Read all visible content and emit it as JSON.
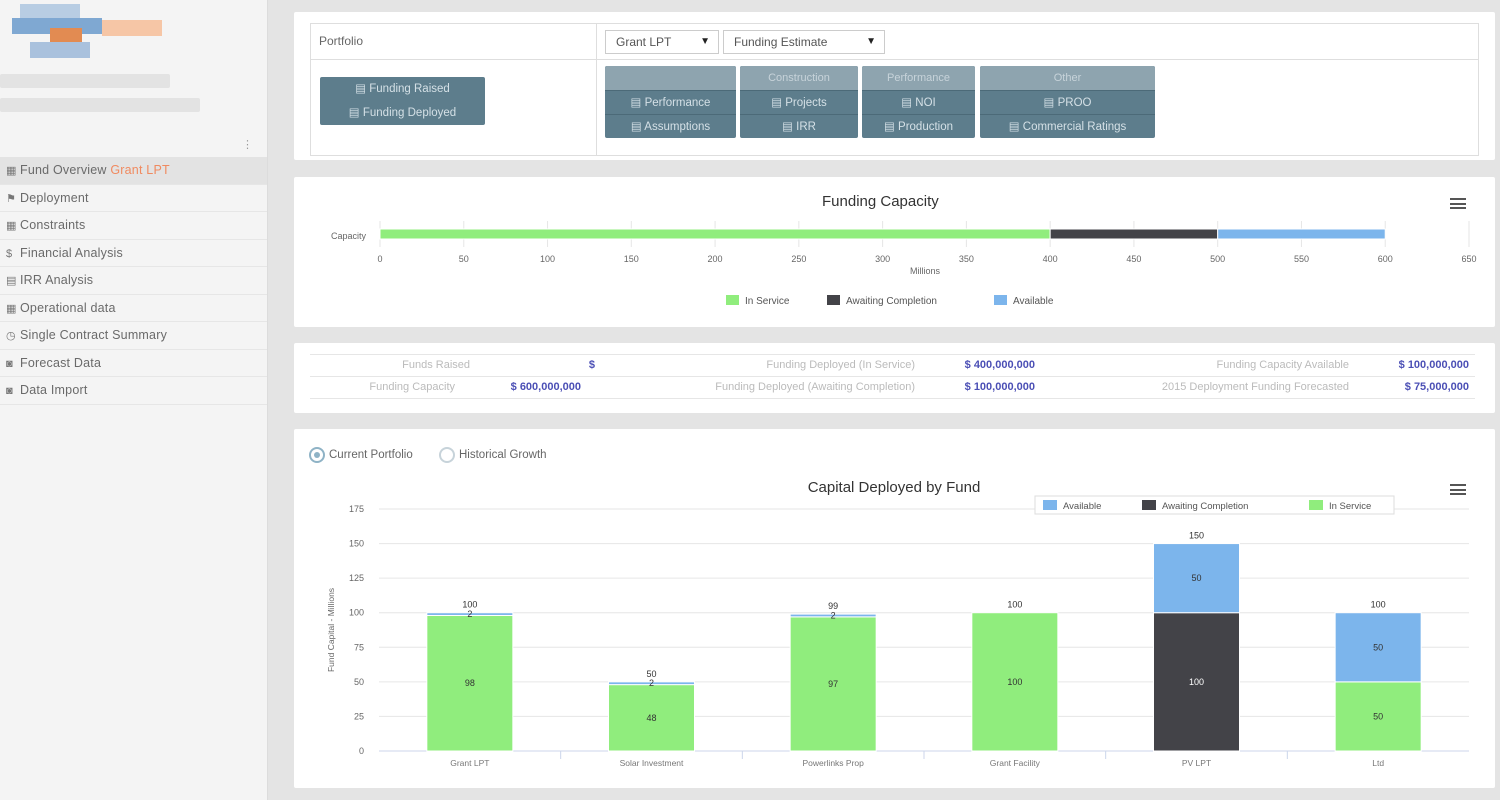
{
  "sidebar": {
    "nav": [
      {
        "icon": "dashboard-icon",
        "glyph": "▦",
        "label": "Fund Overview",
        "sub": "Grant LPT"
      },
      {
        "icon": "flag-icon",
        "glyph": "⚑",
        "label": "Deployment",
        "sub": ""
      },
      {
        "icon": "grid-icon",
        "glyph": "▦",
        "label": "Constraints",
        "sub": ""
      },
      {
        "icon": "dollar-icon",
        "glyph": "$",
        "label": "Financial Analysis",
        "sub": ""
      },
      {
        "icon": "chart-icon",
        "glyph": "▤",
        "label": "IRR Analysis",
        "sub": ""
      },
      {
        "icon": "table-icon",
        "glyph": "▦",
        "label": "Operational data",
        "sub": ""
      },
      {
        "icon": "clock-icon",
        "glyph": "◷",
        "label": "Single Contract Summary",
        "sub": ""
      },
      {
        "icon": "camera-icon",
        "glyph": "◙",
        "label": "Forecast Data",
        "sub": ""
      },
      {
        "icon": "camera-icon",
        "glyph": "◙",
        "label": "Data Import",
        "sub": ""
      }
    ]
  },
  "toolbar": {
    "portfolio_label": "Portfolio",
    "fund_select": "Grant LPT",
    "mode_select": "Funding Estimate",
    "left_buttons": [
      "Funding Raised",
      "Funding Deployed"
    ],
    "groups": [
      {
        "header": "",
        "buttons": [
          "Performance",
          "Assumptions"
        ]
      },
      {
        "header": "Construction",
        "buttons": [
          "Projects",
          "IRR"
        ]
      },
      {
        "header": "Performance",
        "buttons": [
          "NOI",
          "Production"
        ]
      },
      {
        "header": "Other",
        "buttons": [
          "PROO",
          "Commercial Ratings"
        ]
      }
    ]
  },
  "capacity_chart": {
    "title": "Funding Capacity",
    "category": "Capacity",
    "xlabel": "Millions",
    "ticks": [
      "0",
      "50",
      "100",
      "150",
      "200",
      "250",
      "300",
      "350",
      "400",
      "450",
      "500",
      "550",
      "600",
      "650"
    ],
    "legend": [
      "In Service",
      "Awaiting Completion",
      "Available"
    ]
  },
  "stats": {
    "row1": [
      {
        "label": "Funds Raised",
        "value": "$"
      },
      {
        "label": "Funding Deployed (In Service)",
        "value": "$ 400,000,000"
      },
      {
        "label": "Funding Capacity Available",
        "value": "$ 100,000,000"
      }
    ],
    "row2": [
      {
        "label": "Funding Capacity",
        "value": "$ 600,000,000"
      },
      {
        "label": "Funding Deployed (Awaiting Completion)",
        "value": "$ 100,000,000"
      },
      {
        "label": "2015 Deployment Funding Forecasted",
        "value": "$ 75,000,000"
      }
    ]
  },
  "growth": {
    "radio_current": "Current Portfolio",
    "radio_historical": "Historical Growth"
  },
  "chart_data": [
    {
      "type": "bar",
      "orientation": "horizontal-stacked",
      "title": "Funding Capacity",
      "categories": [
        "Capacity"
      ],
      "xlabel": "Millions",
      "xlim": [
        0,
        650
      ],
      "series": [
        {
          "name": "In Service",
          "values": [
            400
          ]
        },
        {
          "name": "Awaiting Completion",
          "values": [
            100
          ]
        },
        {
          "name": "Available",
          "values": [
            100
          ]
        }
      ],
      "colors": [
        "#90ed7d",
        "#434348",
        "#7cb5ec"
      ],
      "legend": "bottom-center"
    },
    {
      "type": "bar",
      "orientation": "vertical-stacked",
      "title": "Capital Deployed by Fund",
      "ylabel": "Fund Capital - Millions",
      "ylim": [
        0,
        175
      ],
      "yticks": [
        0,
        25,
        50,
        75,
        100,
        125,
        150,
        175
      ],
      "categories": [
        "Grant LPT",
        "Solar Investment",
        "Powerlinks Prop",
        "Grant Facility",
        "PV LPT",
        "Ltd"
      ],
      "series": [
        {
          "name": "Available",
          "values": [
            2,
            2,
            2,
            0,
            50,
            50
          ]
        },
        {
          "name": "Awaiting Completion",
          "values": [
            0,
            0,
            0,
            0,
            100,
            0
          ]
        },
        {
          "name": "In Service",
          "values": [
            98,
            48,
            97,
            100,
            0,
            50
          ]
        }
      ],
      "totals": [
        100,
        50,
        99,
        100,
        150,
        100
      ],
      "colors": [
        "#7cb5ec",
        "#434348",
        "#90ed7d"
      ],
      "legend": "top-right"
    }
  ]
}
